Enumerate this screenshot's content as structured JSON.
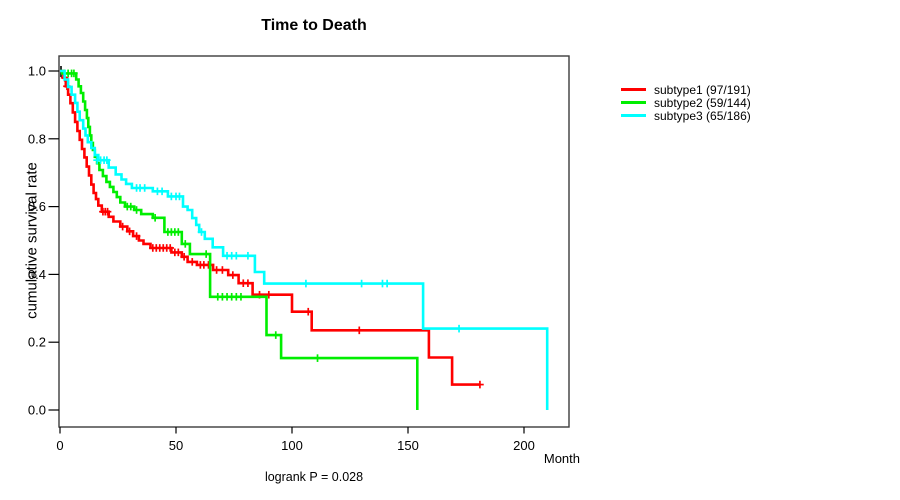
{
  "chart_data": {
    "type": "line",
    "subtype": "kaplan-meier-survival",
    "title": "Time to Death",
    "xlabel": "Month",
    "ylabel": "cumulative survival rate",
    "annotation": "logrank P = 0.028",
    "xlim": [
      0,
      220
    ],
    "ylim": [
      0.0,
      1.0
    ],
    "x_ticks": [
      0,
      50,
      100,
      150,
      200
    ],
    "y_ticks": [
      0.0,
      0.2,
      0.4,
      0.6,
      0.8,
      1.0
    ],
    "grid": false,
    "legend_position": "right-outside",
    "start_mark_color": "#000000",
    "series": [
      {
        "name": "subtype1",
        "label": "subtype1 (97/191)",
        "events": 97,
        "total": 191,
        "color": "#ff0000",
        "end_month": 181,
        "steps": [
          [
            0,
            1.0
          ],
          [
            1.5,
            0.98
          ],
          [
            2.5,
            0.955
          ],
          [
            3.5,
            0.93
          ],
          [
            4.5,
            0.905
          ],
          [
            5.5,
            0.878
          ],
          [
            6.5,
            0.85
          ],
          [
            7.5,
            0.823
          ],
          [
            8.5,
            0.797
          ],
          [
            9.5,
            0.77
          ],
          [
            10.5,
            0.745
          ],
          [
            11.5,
            0.718
          ],
          [
            12.5,
            0.692
          ],
          [
            13.5,
            0.665
          ],
          [
            14.5,
            0.64
          ],
          [
            15.5,
            0.622
          ],
          [
            16.5,
            0.603
          ],
          [
            18,
            0.585
          ],
          [
            21,
            0.57
          ],
          [
            23,
            0.556
          ],
          [
            26,
            0.541
          ],
          [
            29,
            0.527
          ],
          [
            31.5,
            0.513
          ],
          [
            34,
            0.5
          ],
          [
            36,
            0.49
          ],
          [
            39,
            0.478
          ],
          [
            48,
            0.465
          ],
          [
            52.5,
            0.452
          ],
          [
            55,
            0.437
          ],
          [
            59,
            0.428
          ],
          [
            66,
            0.413
          ],
          [
            72.5,
            0.398
          ],
          [
            77,
            0.374
          ],
          [
            83,
            0.34
          ],
          [
            100,
            0.29
          ],
          [
            108.5,
            0.235
          ],
          [
            159,
            0.155
          ],
          [
            169,
            0.075
          ]
        ],
        "censors": [
          [
            2,
            0.98
          ],
          [
            3,
            0.955
          ],
          [
            18.5,
            0.585
          ],
          [
            19.5,
            0.585
          ],
          [
            20.5,
            0.585
          ],
          [
            27,
            0.541
          ],
          [
            30,
            0.527
          ],
          [
            33,
            0.513
          ],
          [
            40,
            0.478
          ],
          [
            41.5,
            0.478
          ],
          [
            43,
            0.478
          ],
          [
            44.5,
            0.478
          ],
          [
            46,
            0.478
          ],
          [
            47.5,
            0.478
          ],
          [
            49.5,
            0.465
          ],
          [
            51,
            0.465
          ],
          [
            53.5,
            0.452
          ],
          [
            57,
            0.437
          ],
          [
            60.5,
            0.428
          ],
          [
            62,
            0.428
          ],
          [
            64,
            0.428
          ],
          [
            67.5,
            0.413
          ],
          [
            70,
            0.413
          ],
          [
            74.5,
            0.398
          ],
          [
            79,
            0.374
          ],
          [
            81,
            0.374
          ],
          [
            86,
            0.34
          ],
          [
            90,
            0.34
          ],
          [
            107,
            0.29
          ],
          [
            129,
            0.235
          ],
          [
            181,
            0.075
          ]
        ]
      },
      {
        "name": "subtype2",
        "label": "subtype2 (59/144)",
        "events": 59,
        "total": 144,
        "color": "#00ee00",
        "end_month": null,
        "steps": [
          [
            0,
            1.0
          ],
          [
            1,
            0.993
          ],
          [
            7,
            0.975
          ],
          [
            8,
            0.955
          ],
          [
            9,
            0.935
          ],
          [
            10,
            0.91
          ],
          [
            10.8,
            0.885
          ],
          [
            11.6,
            0.861
          ],
          [
            12.2,
            0.835
          ],
          [
            12.9,
            0.81
          ],
          [
            13.5,
            0.788
          ],
          [
            14.2,
            0.767
          ],
          [
            15,
            0.747
          ],
          [
            16,
            0.728
          ],
          [
            17,
            0.708
          ],
          [
            18.5,
            0.69
          ],
          [
            20,
            0.673
          ],
          [
            21.5,
            0.658
          ],
          [
            23,
            0.643
          ],
          [
            24.5,
            0.628
          ],
          [
            26,
            0.612
          ],
          [
            28,
            0.6
          ],
          [
            32,
            0.59
          ],
          [
            35,
            0.578
          ],
          [
            40,
            0.567
          ],
          [
            45,
            0.525
          ],
          [
            52.5,
            0.49
          ],
          [
            56,
            0.46
          ],
          [
            64.7,
            0.334
          ],
          [
            89,
            0.221
          ],
          [
            95.3,
            0.153
          ],
          [
            154,
            0.0
          ]
        ],
        "censors": [
          [
            2,
            0.993
          ],
          [
            3.5,
            0.993
          ],
          [
            5,
            0.993
          ],
          [
            6,
            0.993
          ],
          [
            29,
            0.6
          ],
          [
            30.5,
            0.6
          ],
          [
            33,
            0.59
          ],
          [
            41,
            0.567
          ],
          [
            46.5,
            0.525
          ],
          [
            48,
            0.525
          ],
          [
            49.5,
            0.525
          ],
          [
            51,
            0.525
          ],
          [
            54,
            0.49
          ],
          [
            63,
            0.46
          ],
          [
            68,
            0.334
          ],
          [
            70,
            0.334
          ],
          [
            72,
            0.334
          ],
          [
            74,
            0.334
          ],
          [
            76,
            0.334
          ],
          [
            78,
            0.334
          ],
          [
            93,
            0.221
          ],
          [
            111,
            0.153
          ]
        ]
      },
      {
        "name": "subtype3",
        "label": "subtype3 (65/186)",
        "events": 65,
        "total": 186,
        "color": "#00ffff",
        "end_month": null,
        "steps": [
          [
            0,
            1.0
          ],
          [
            2,
            0.975
          ],
          [
            3.5,
            0.953
          ],
          [
            5,
            0.93
          ],
          [
            6.5,
            0.906
          ],
          [
            7.5,
            0.88
          ],
          [
            8.5,
            0.855
          ],
          [
            10,
            0.83
          ],
          [
            11,
            0.81
          ],
          [
            12,
            0.79
          ],
          [
            13.5,
            0.773
          ],
          [
            15,
            0.752
          ],
          [
            16.5,
            0.737
          ],
          [
            21,
            0.715
          ],
          [
            24,
            0.695
          ],
          [
            26.5,
            0.68
          ],
          [
            28.5,
            0.667
          ],
          [
            31,
            0.655
          ],
          [
            40,
            0.645
          ],
          [
            46.5,
            0.63
          ],
          [
            53,
            0.6
          ],
          [
            55,
            0.59
          ],
          [
            57,
            0.566
          ],
          [
            58.7,
            0.546
          ],
          [
            60,
            0.525
          ],
          [
            62.4,
            0.505
          ],
          [
            65.8,
            0.48
          ],
          [
            70.3,
            0.455
          ],
          [
            84,
            0.407
          ],
          [
            88,
            0.373
          ],
          [
            156.5,
            0.24
          ],
          [
            210,
            0.0
          ]
        ],
        "censors": [
          [
            16,
            0.737
          ],
          [
            17.5,
            0.737
          ],
          [
            19,
            0.737
          ],
          [
            20.2,
            0.737
          ],
          [
            33,
            0.655
          ],
          [
            34.5,
            0.655
          ],
          [
            36.5,
            0.655
          ],
          [
            42,
            0.645
          ],
          [
            44,
            0.645
          ],
          [
            48,
            0.63
          ],
          [
            50,
            0.63
          ],
          [
            51.5,
            0.63
          ],
          [
            61,
            0.525
          ],
          [
            72,
            0.455
          ],
          [
            74,
            0.455
          ],
          [
            76,
            0.455
          ],
          [
            81,
            0.455
          ],
          [
            106,
            0.373
          ],
          [
            130,
            0.373
          ],
          [
            139,
            0.373
          ],
          [
            141,
            0.373
          ],
          [
            172,
            0.24
          ]
        ]
      }
    ]
  }
}
